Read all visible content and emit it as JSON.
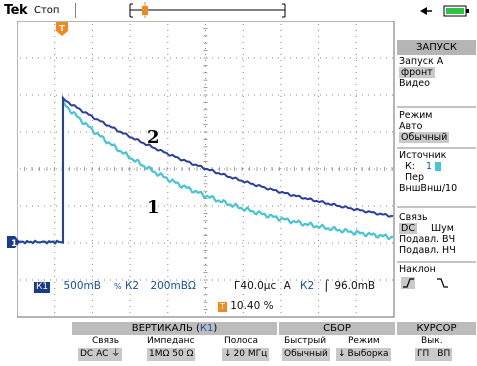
{
  "header": {
    "brand": "Tek",
    "status": "Стоп"
  },
  "right_menu": {
    "title": "ЗАПУСК",
    "trigger_a": "Запуск А",
    "front": "фронт",
    "video": "Видео",
    "mode_label": "Режим",
    "mode_auto": "Авто",
    "mode_normal": "Обычный",
    "source_label": "Источник",
    "source_k": "К:",
    "source_k_num": "1",
    "source_per": "Пер",
    "source_ext": "ВншВнш/10",
    "coupling_label": "Связь",
    "coupling_dc": "DC",
    "coupling_noise": "Шум",
    "coupling_rej_hf": "Подавл. ВЧ",
    "coupling_rej_lf": "Подавл. НЧ",
    "slope_label": "Наклон",
    "slope_rise": "⌐",
    "slope_fall": "⌐"
  },
  "readout": {
    "ch1_badge": "К1",
    "ch1_scale": "500mB",
    "ch2_symbol": "%",
    "ch2_label": "К2",
    "ch2_scale": "200mB",
    "ch2_ohm": "Ω",
    "timebase": "Г40.0μс",
    "trig_a": "А",
    "trig_src": "К2",
    "trig_level": "96.0mB",
    "position": "10.40 %",
    "marker_t": "T"
  },
  "curve_labels": {
    "upper": "2",
    "lower": "1"
  },
  "bottom_menu": {
    "vertical_title": "ВЕРТИКАЛЬ (",
    "vertical_k": "К1",
    "vertical_close": ")",
    "coupling_label": "Связь",
    "coupling_value": "DC  AC  ⏚",
    "impedance_label": "Импеданс",
    "impedance_value": "1MΩ  50 Ω",
    "band_label": "Полоса",
    "band_value": "20 МГц",
    "acq_title": "СБОР",
    "fast_label": "Быстрый",
    "fast_value": "Обычный",
    "mode_label": "Режим",
    "mode_value": "Выборка",
    "cursor_title": "КУРСОР",
    "cursor_off": "Вык.",
    "cursor_h": "ГП",
    "cursor_v": "ВП"
  },
  "colors": {
    "ch1": "#2c3f9a",
    "ch2": "#49c4d2",
    "marker": "#f0891e"
  }
}
